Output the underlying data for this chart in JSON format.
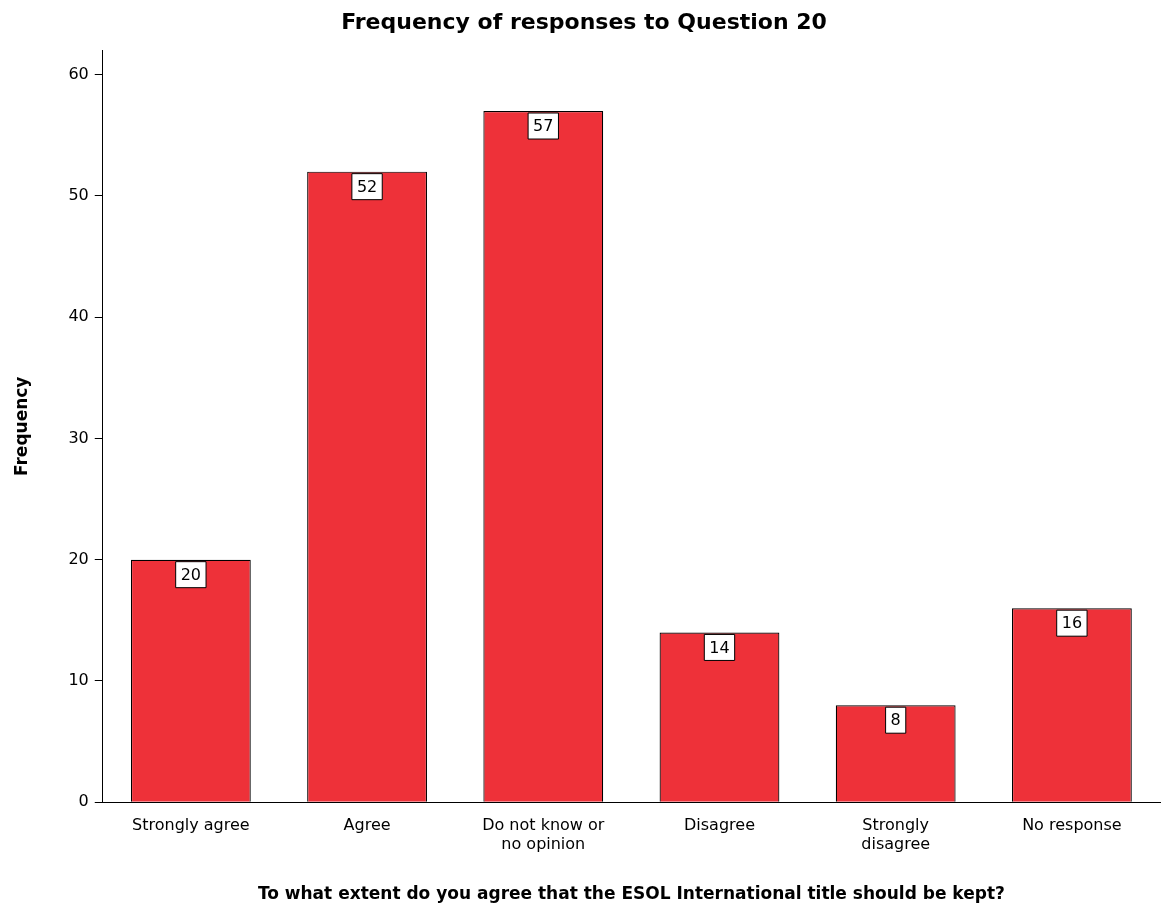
{
  "chart_data": {
    "type": "bar",
    "title": "Frequency of responses to Question 20",
    "xlabel": "To what extent do you agree that the ESOL International title should be kept?",
    "ylabel": "Frequency",
    "categories": [
      "Strongly agree",
      "Agree",
      "Do not know or no opinion",
      "Disagree",
      "Strongly disagree",
      "No response"
    ],
    "values": [
      20,
      52,
      57,
      14,
      8,
      16
    ],
    "color": "#ee3139",
    "ylim": [
      0,
      62
    ],
    "yticks": [
      0,
      10,
      20,
      30,
      40,
      50,
      60
    ],
    "grid": false,
    "legend": false,
    "data_labels": true
  }
}
